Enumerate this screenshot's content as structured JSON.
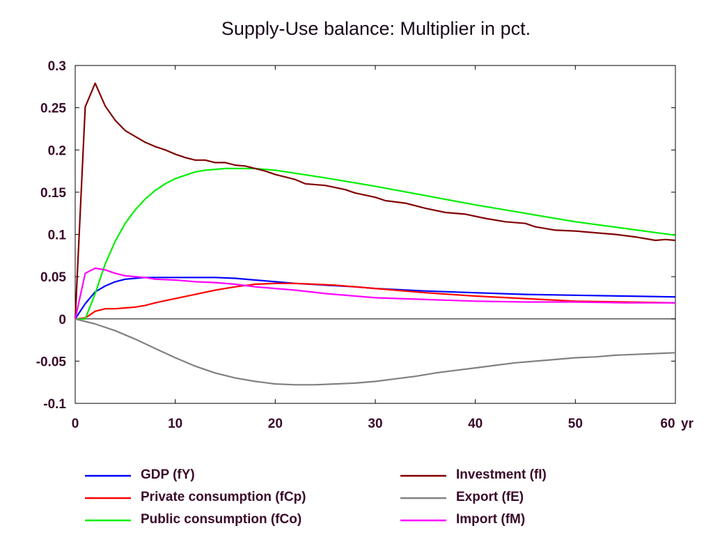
{
  "chart_data": {
    "type": "line",
    "title": "Supply-Use balance: Multiplier in pct.",
    "xlabel": "",
    "ylabel": "",
    "x_unit_label": "yr",
    "xlim": [
      0,
      60
    ],
    "ylim": [
      -0.1,
      0.3
    ],
    "x_ticks": [
      0,
      10,
      20,
      30,
      40,
      50,
      60
    ],
    "x_tick_labels": [
      "0",
      "10",
      "20",
      "30",
      "40",
      "50",
      "60"
    ],
    "y_ticks": [
      -0.1,
      -0.05,
      0,
      0.05,
      0.1,
      0.15,
      0.2,
      0.25,
      0.3
    ],
    "y_tick_labels": [
      "-0.1",
      "-0.05",
      "0",
      "0.05",
      "0.1",
      "0.15",
      "0.2",
      "0.25",
      "0.3"
    ],
    "grid": false,
    "legend_position": "bottom",
    "series": [
      {
        "name": "GDP (fY)",
        "color": "#0000ff",
        "points": [
          [
            0,
            0
          ],
          [
            1,
            0.018
          ],
          [
            2,
            0.032
          ],
          [
            3,
            0.039
          ],
          [
            4,
            0.044
          ],
          [
            5,
            0.047
          ],
          [
            6,
            0.048
          ],
          [
            7,
            0.049
          ],
          [
            8,
            0.049
          ],
          [
            10,
            0.049
          ],
          [
            12,
            0.049
          ],
          [
            14,
            0.049
          ],
          [
            16,
            0.048
          ],
          [
            18,
            0.046
          ],
          [
            20,
            0.044
          ],
          [
            22,
            0.042
          ],
          [
            25,
            0.04
          ],
          [
            28,
            0.038
          ],
          [
            30,
            0.036
          ],
          [
            35,
            0.033
          ],
          [
            40,
            0.031
          ],
          [
            45,
            0.029
          ],
          [
            50,
            0.028
          ],
          [
            55,
            0.027
          ],
          [
            60,
            0.026
          ]
        ]
      },
      {
        "name": "Private consumption (fCp)",
        "color": "#ff0000",
        "points": [
          [
            0,
            0
          ],
          [
            1,
            0.001
          ],
          [
            2,
            0.009
          ],
          [
            3,
            0.012
          ],
          [
            4,
            0.012
          ],
          [
            5,
            0.013
          ],
          [
            6,
            0.014
          ],
          [
            7,
            0.016
          ],
          [
            8,
            0.019
          ],
          [
            10,
            0.024
          ],
          [
            12,
            0.029
          ],
          [
            14,
            0.034
          ],
          [
            16,
            0.038
          ],
          [
            18,
            0.041
          ],
          [
            20,
            0.042
          ],
          [
            22,
            0.042
          ],
          [
            24,
            0.041
          ],
          [
            26,
            0.04
          ],
          [
            28,
            0.038
          ],
          [
            30,
            0.036
          ],
          [
            35,
            0.031
          ],
          [
            40,
            0.027
          ],
          [
            45,
            0.024
          ],
          [
            50,
            0.021
          ],
          [
            55,
            0.02
          ],
          [
            60,
            0.019
          ]
        ]
      },
      {
        "name": "Public consumption (fCo)",
        "color": "#00ee00",
        "points": [
          [
            0,
            0
          ],
          [
            1,
            0
          ],
          [
            2,
            0.03
          ],
          [
            3,
            0.065
          ],
          [
            4,
            0.092
          ],
          [
            5,
            0.113
          ],
          [
            6,
            0.129
          ],
          [
            7,
            0.142
          ],
          [
            8,
            0.152
          ],
          [
            9,
            0.16
          ],
          [
            10,
            0.166
          ],
          [
            11,
            0.17
          ],
          [
            12,
            0.174
          ],
          [
            13,
            0.176
          ],
          [
            14,
            0.177
          ],
          [
            15,
            0.178
          ],
          [
            16,
            0.178
          ],
          [
            17,
            0.178
          ],
          [
            18,
            0.178
          ],
          [
            20,
            0.176
          ],
          [
            25,
            0.167
          ],
          [
            30,
            0.157
          ],
          [
            35,
            0.146
          ],
          [
            40,
            0.135
          ],
          [
            45,
            0.125
          ],
          [
            50,
            0.115
          ],
          [
            55,
            0.107
          ],
          [
            60,
            0.099
          ]
        ]
      },
      {
        "name": "Investment (fI)",
        "color": "#800000",
        "points": [
          [
            0,
            0
          ],
          [
            1,
            0.251
          ],
          [
            2,
            0.279
          ],
          [
            3,
            0.252
          ],
          [
            4,
            0.235
          ],
          [
            5,
            0.223
          ],
          [
            6,
            0.216
          ],
          [
            7,
            0.209
          ],
          [
            8,
            0.204
          ],
          [
            9,
            0.2
          ],
          [
            10,
            0.195
          ],
          [
            11,
            0.191
          ],
          [
            12,
            0.188
          ],
          [
            13,
            0.188
          ],
          [
            14,
            0.185
          ],
          [
            15,
            0.185
          ],
          [
            16,
            0.182
          ],
          [
            17,
            0.181
          ],
          [
            18,
            0.178
          ],
          [
            19,
            0.175
          ],
          [
            20,
            0.171
          ],
          [
            22,
            0.165
          ],
          [
            23,
            0.16
          ],
          [
            25,
            0.158
          ],
          [
            27,
            0.153
          ],
          [
            28,
            0.149
          ],
          [
            30,
            0.144
          ],
          [
            31,
            0.14
          ],
          [
            33,
            0.137
          ],
          [
            35,
            0.131
          ],
          [
            37,
            0.126
          ],
          [
            39,
            0.124
          ],
          [
            41,
            0.119
          ],
          [
            43,
            0.115
          ],
          [
            45,
            0.113
          ],
          [
            46,
            0.109
          ],
          [
            48,
            0.105
          ],
          [
            50,
            0.104
          ],
          [
            52,
            0.102
          ],
          [
            54,
            0.1
          ],
          [
            56,
            0.097
          ],
          [
            58,
            0.093
          ],
          [
            59,
            0.094
          ],
          [
            60,
            0.093
          ]
        ]
      },
      {
        "name": "Export (fE)",
        "color": "#808080",
        "points": [
          [
            0,
            0
          ],
          [
            2,
            -0.006
          ],
          [
            4,
            -0.014
          ],
          [
            6,
            -0.024
          ],
          [
            8,
            -0.035
          ],
          [
            10,
            -0.046
          ],
          [
            12,
            -0.056
          ],
          [
            14,
            -0.064
          ],
          [
            16,
            -0.07
          ],
          [
            18,
            -0.074
          ],
          [
            20,
            -0.077
          ],
          [
            22,
            -0.078
          ],
          [
            24,
            -0.078
          ],
          [
            26,
            -0.077
          ],
          [
            28,
            -0.076
          ],
          [
            30,
            -0.074
          ],
          [
            32,
            -0.071
          ],
          [
            34,
            -0.068
          ],
          [
            36,
            -0.064
          ],
          [
            38,
            -0.061
          ],
          [
            40,
            -0.058
          ],
          [
            42,
            -0.055
          ],
          [
            44,
            -0.052
          ],
          [
            46,
            -0.05
          ],
          [
            48,
            -0.048
          ],
          [
            50,
            -0.046
          ],
          [
            52,
            -0.045
          ],
          [
            54,
            -0.043
          ],
          [
            56,
            -0.042
          ],
          [
            58,
            -0.041
          ],
          [
            60,
            -0.04
          ]
        ]
      },
      {
        "name": "Import (fM)",
        "color": "#ff00ff",
        "points": [
          [
            0,
            0
          ],
          [
            1,
            0.054
          ],
          [
            2,
            0.06
          ],
          [
            3,
            0.058
          ],
          [
            4,
            0.054
          ],
          [
            5,
            0.051
          ],
          [
            6,
            0.05
          ],
          [
            7,
            0.049
          ],
          [
            8,
            0.047
          ],
          [
            10,
            0.046
          ],
          [
            12,
            0.044
          ],
          [
            14,
            0.043
          ],
          [
            16,
            0.041
          ],
          [
            18,
            0.038
          ],
          [
            20,
            0.036
          ],
          [
            22,
            0.034
          ],
          [
            25,
            0.03
          ],
          [
            28,
            0.027
          ],
          [
            30,
            0.025
          ],
          [
            35,
            0.023
          ],
          [
            40,
            0.021
          ],
          [
            45,
            0.02
          ],
          [
            50,
            0.02
          ],
          [
            55,
            0.019
          ],
          [
            60,
            0.019
          ]
        ]
      }
    ]
  }
}
